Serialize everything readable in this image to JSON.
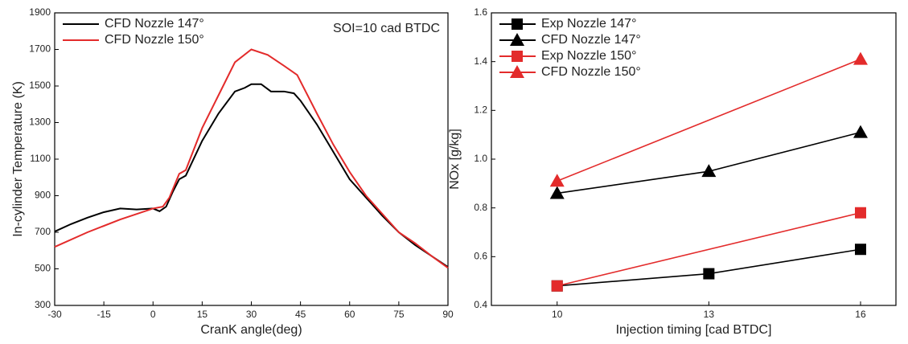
{
  "chart_data": [
    {
      "type": "line",
      "x_label": "CranK angle(deg)",
      "y_label": "In-cylinder Temperature (K)",
      "annotation": "SOI=10 cad BTDC",
      "xlim": [
        -30,
        90
      ],
      "xticks": [
        -30,
        -15,
        0,
        15,
        30,
        45,
        60,
        75,
        90
      ],
      "ylim": [
        300,
        1900
      ],
      "yticks": [
        300,
        500,
        700,
        900,
        1100,
        1300,
        1500,
        1700,
        1900
      ],
      "legend": "top-left",
      "series": [
        {
          "name": "CFD  Nozzle 147°",
          "color": "#000000",
          "x": [
            -30,
            -25,
            -20,
            -15,
            -10,
            -5,
            0,
            2,
            4,
            6,
            8,
            10,
            15,
            20,
            25,
            28,
            30,
            33,
            36,
            40,
            43,
            45,
            50,
            55,
            60,
            65,
            70,
            75,
            80,
            85,
            90
          ],
          "values": [
            704,
            745,
            780,
            810,
            830,
            825,
            830,
            815,
            840,
            920,
            990,
            1010,
            1200,
            1350,
            1470,
            1490,
            1510,
            1510,
            1470,
            1470,
            1460,
            1420,
            1290,
            1140,
            990,
            890,
            790,
            700,
            630,
            570,
            510
          ]
        },
        {
          "name": "CFD  Nozzle 150°",
          "color": "#e32b2b",
          "x": [
            -30,
            -20,
            -10,
            0,
            3,
            5,
            8,
            10,
            15,
            20,
            25,
            30,
            35,
            40,
            44,
            50,
            55,
            60,
            65,
            70,
            75,
            80,
            85,
            90
          ],
          "values": [
            620,
            700,
            770,
            830,
            840,
            890,
            1020,
            1040,
            1270,
            1450,
            1630,
            1700,
            1670,
            1610,
            1560,
            1350,
            1180,
            1030,
            900,
            800,
            700,
            640,
            570,
            505
          ]
        }
      ]
    },
    {
      "type": "line",
      "x_label": "Injection timing [cad BTDC]",
      "y_label": "NOx [g/kg]",
      "xlim": [
        8.7,
        16.7
      ],
      "xticks": [
        10,
        13,
        16
      ],
      "ylim": [
        0.4,
        1.6
      ],
      "yticks": [
        0.4,
        0.6,
        0.8,
        {
          "value": 1,
          "label": "1.0"
        },
        1.2,
        1.4,
        1.6
      ],
      "legend": "top-left",
      "series": [
        {
          "name": "Exp   Nozzle 147°",
          "color": "#000000",
          "marker": "square",
          "x": [
            10,
            13,
            16
          ],
          "values": [
            0.48,
            0.53,
            0.63
          ]
        },
        {
          "name": "CFD  Nozzle 147°",
          "color": "#000000",
          "marker": "triangle",
          "x": [
            10,
            13,
            16
          ],
          "values": [
            0.86,
            0.95,
            1.11
          ]
        },
        {
          "name": "Exp   Nozzle 150°",
          "color": "#e32b2b",
          "marker": "square",
          "x": [
            10,
            16
          ],
          "values": [
            0.48,
            0.78
          ]
        },
        {
          "name": "CFD  Nozzle 150°",
          "color": "#e32b2b",
          "marker": "triangle",
          "x": [
            10,
            16
          ],
          "values": [
            0.91,
            1.41
          ]
        }
      ]
    }
  ]
}
